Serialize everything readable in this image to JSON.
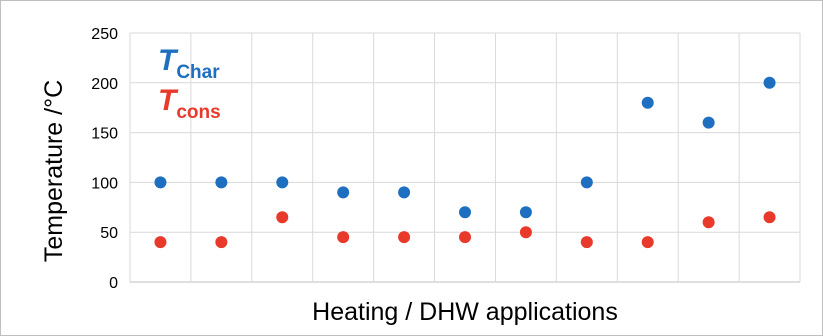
{
  "chart_data": {
    "type": "scatter",
    "title": "",
    "xlabel": "Heating / DHW applications",
    "ylabel": "Temperature /°C",
    "ylim": [
      0,
      250
    ],
    "yticks": [
      0,
      50,
      100,
      150,
      200,
      250
    ],
    "grid": true,
    "legend_position": "top-left",
    "x": [
      1,
      2,
      3,
      4,
      5,
      6,
      7,
      8,
      9,
      10,
      11
    ],
    "series": [
      {
        "name": "T_Char",
        "symbol": "T",
        "subscript": "Char",
        "color": "#1f6fc0",
        "values": [
          100,
          100,
          100,
          90,
          90,
          70,
          70,
          100,
          180,
          160,
          200
        ]
      },
      {
        "name": "T_cons",
        "symbol": "T",
        "subscript": "cons",
        "color": "#e8392b",
        "values": [
          40,
          40,
          65,
          45,
          45,
          45,
          50,
          40,
          40,
          60,
          65
        ]
      }
    ]
  }
}
